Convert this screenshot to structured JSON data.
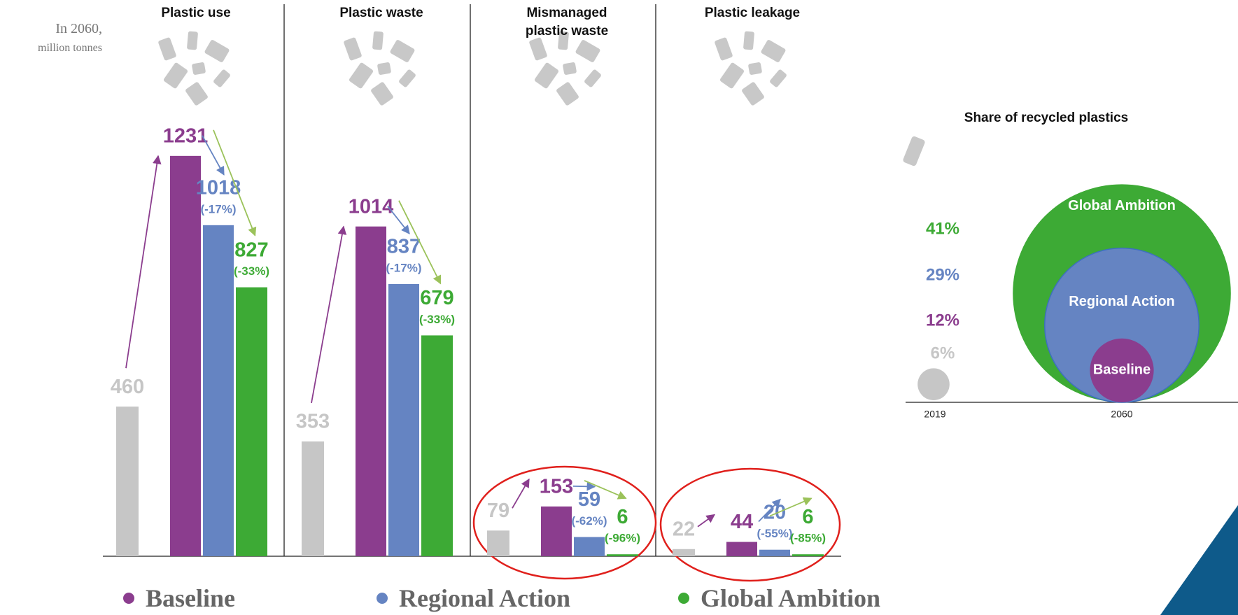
{
  "note": {
    "line1": "In 2060,",
    "line2": "million tonnes"
  },
  "chart_data": [
    {
      "type": "bar",
      "title": "Plastic use",
      "categories": [
        null,
        null,
        null,
        null
      ],
      "values": [
        460,
        1231,
        1018,
        827
      ],
      "colors": [
        "#c6c6c6",
        "#8b3d8e",
        "#6584c2",
        "#3daa35"
      ],
      "changes": [
        null,
        null,
        {
          "value": -17,
          "label": "(-17%)"
        },
        {
          "value": -33,
          "label": "(-33%)"
        }
      ],
      "ylim": [
        0,
        1250
      ]
    },
    {
      "type": "bar",
      "title": "Plastic waste",
      "categories": [
        null,
        null,
        null,
        null
      ],
      "values": [
        353,
        1014,
        837,
        679
      ],
      "colors": [
        "#c6c6c6",
        "#8b3d8e",
        "#6584c2",
        "#3daa35"
      ],
      "changes": [
        null,
        null,
        {
          "value": -17,
          "label": "(-17%)"
        },
        {
          "value": -33,
          "label": "(-33%)"
        }
      ],
      "ylim": [
        0,
        1250
      ]
    },
    {
      "type": "bar",
      "title": "Mismanaged plastic waste",
      "categories": [
        null,
        null,
        null,
        null
      ],
      "values": [
        79,
        153,
        59,
        6
      ],
      "colors": [
        "#c6c6c6",
        "#8b3d8e",
        "#6584c2",
        "#3daa35"
      ],
      "changes": [
        null,
        null,
        {
          "value": -62,
          "label": "(-62%)"
        },
        {
          "value": -96,
          "label": "(-96%)"
        }
      ],
      "ylim": [
        0,
        1250
      ]
    },
    {
      "type": "bar",
      "title": "Plastic leakage",
      "categories": [
        null,
        null,
        null,
        null
      ],
      "values": [
        22,
        44,
        20,
        6
      ],
      "colors": [
        "#c6c6c6",
        "#8b3d8e",
        "#6584c2",
        "#3daa35"
      ],
      "changes": [
        null,
        null,
        {
          "value": -55,
          "label": "(-55%)"
        },
        {
          "value": -85,
          "label": "(-85%)"
        }
      ],
      "ylim": [
        0,
        1250
      ]
    },
    {
      "type": "bubble",
      "title": "Share of recycled plastics",
      "categories": [
        "2019",
        "2060"
      ],
      "point_2019": {
        "value": 6,
        "value_label": "6%",
        "color": "#c6c6c6"
      },
      "series": [
        {
          "name": "Baseline",
          "color": "#8b3d8e",
          "value": 12,
          "value_label": "12%"
        },
        {
          "name": "Regional Action",
          "color": "#6584c2",
          "value": 29,
          "value_label": "29%"
        },
        {
          "name": "Global Ambition",
          "color": "#3daa35",
          "value": 41,
          "value_label": "41%"
        }
      ]
    }
  ]
}
